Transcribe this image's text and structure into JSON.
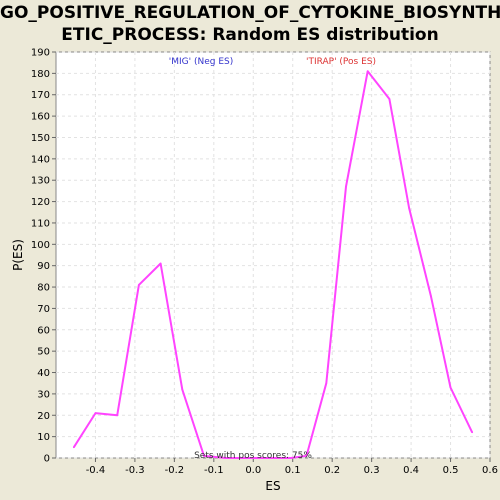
{
  "chart_data": {
    "type": "line",
    "title_line1": "GO_POSITIVE_REGULATION_OF_CYTOKINE_BIOSYNTH",
    "title_line2": "ETIC_PROCESS: Random ES distribution",
    "xlabel": "ES",
    "ylabel": "P(ES)",
    "xlim": [
      -0.5,
      0.6
    ],
    "ylim": [
      0,
      190
    ],
    "xticks": [
      -0.4,
      -0.3,
      -0.2,
      -0.1,
      0.0,
      0.1,
      0.2,
      0.3,
      0.4,
      0.5,
      0.6
    ],
    "xtick_labels": [
      "-0.4",
      "-0.3",
      "-0.2",
      "-0.1",
      "0.0",
      "0.1",
      "0.2",
      "0.3",
      "0.4",
      "0.5",
      "0.6"
    ],
    "yticks": [
      0,
      10,
      20,
      30,
      40,
      50,
      60,
      70,
      80,
      90,
      100,
      110,
      120,
      130,
      140,
      150,
      160,
      170,
      180,
      190
    ],
    "grid": true,
    "series": [
      {
        "color": "#ff44ff",
        "x": [
          -0.455,
          -0.4,
          -0.345,
          -0.29,
          -0.235,
          -0.18,
          -0.125,
          -0.07,
          -0.015,
          0.04,
          0.095,
          0.135,
          0.185,
          0.235,
          0.29,
          0.345,
          0.395,
          0.45,
          0.5,
          0.555
        ],
        "y": [
          5,
          21,
          20,
          81,
          91,
          32,
          1,
          0,
          0,
          0,
          0,
          1,
          35,
          127,
          181,
          168,
          117,
          76,
          33,
          12
        ]
      }
    ],
    "annotations": {
      "neg": {
        "text": "'MIG' (Neg ES)",
        "color": "#3333cc"
      },
      "pos": {
        "text": "'TIRAP' (Pos ES)",
        "color": "#dd3333"
      },
      "footer": {
        "text": "Sets with pos scores: 75%",
        "color": "#333333"
      }
    }
  }
}
